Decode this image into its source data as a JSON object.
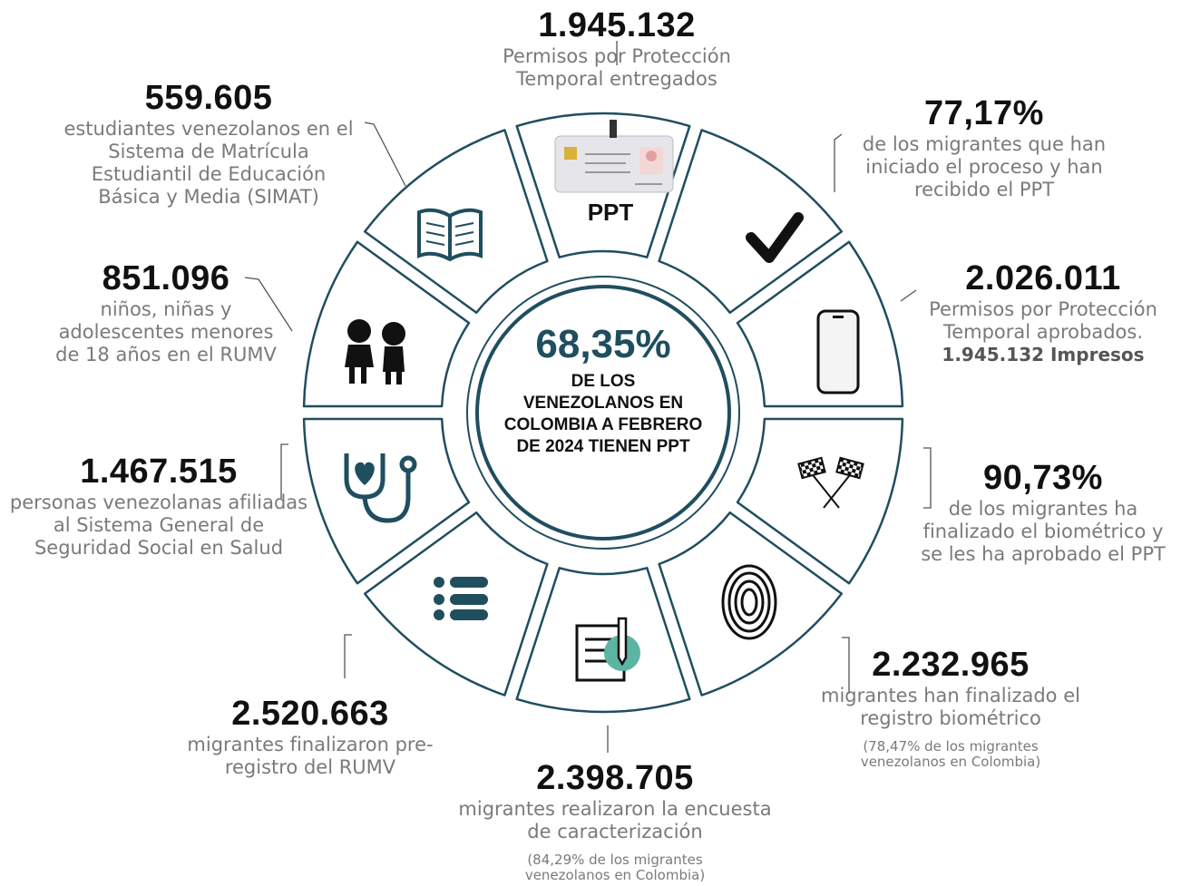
{
  "center": {
    "value": "68,35%",
    "text": "DE LOS VENEZOLANOS EN COLOMBIA A FEBRERO DE 2024 TIENEN PPT"
  },
  "ppt_label": "PPT",
  "stats": [
    {
      "value": "1.945.132",
      "text": "Permisos por Protección Temporal entregados"
    },
    {
      "value": "77,17%",
      "text": "de los migrantes que han iniciado el proceso y han recibido el PPT"
    },
    {
      "value": "2.026.011",
      "text": "Permisos por Protección Temporal aprobados.",
      "bold": "1.945.132 Impresos"
    },
    {
      "value": "90,73%",
      "text": "de los migrantes ha finalizado el biométrico y se les ha aprobado el PPT"
    },
    {
      "value": "2.232.965",
      "text": "migrantes han finalizado el registro biométrico",
      "note": "(78,47% de los migrantes venezolanos en Colombia)"
    },
    {
      "value": "2.398.705",
      "text": "migrantes realizaron la encuesta de caracterización",
      "note": "(84,29% de los migrantes venezolanos en Colombia)"
    },
    {
      "value": "2.520.663",
      "text": "migrantes finalizaron pre-registro del RUMV"
    },
    {
      "value": "1.467.515",
      "text": "personas venezolanas afiliadas al Sistema General de Seguridad Social en Salud"
    },
    {
      "value": "851.096",
      "text": "niños, niñas y adolescentes menores de 18 años en el RUMV"
    },
    {
      "value": "559.605",
      "text": "estudiantes venezolanos en el Sistema de Matrícula Estudiantil de Educación Básica y Media (SIMAT)"
    }
  ]
}
